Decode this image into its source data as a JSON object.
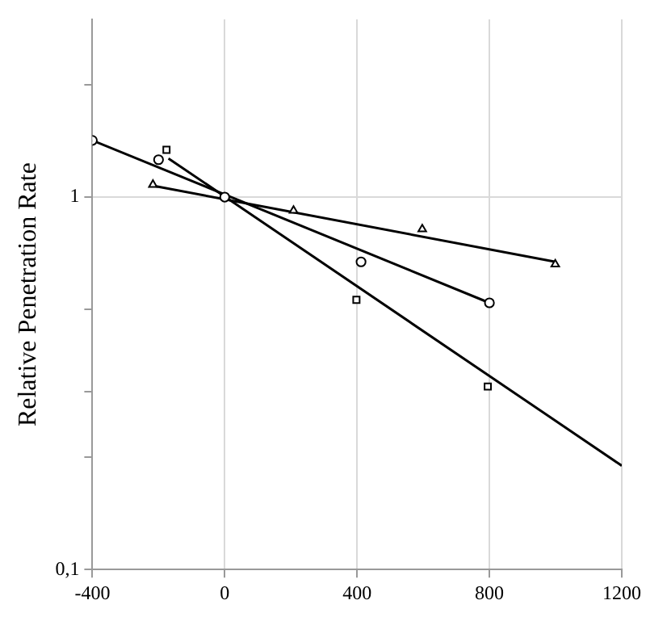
{
  "chart_data": {
    "type": "scatter",
    "ylabel": "Relative Penetration Rate",
    "log": "y",
    "grid": true,
    "legend": false,
    "xlim": [
      -400,
      1200
    ],
    "xticks": [
      -400,
      0,
      400,
      800,
      1200
    ],
    "ylim": [
      0.1,
      3
    ],
    "yticks": [
      {
        "value": 0.1,
        "label": "0,1"
      },
      {
        "value": 0.2,
        "label": null
      },
      {
        "value": 0.3,
        "label": null
      },
      {
        "value": 0.5,
        "label": null
      },
      {
        "value": 1,
        "label": "1"
      },
      {
        "value": 2,
        "label": null
      }
    ],
    "series": [
      {
        "type": "scatter",
        "marker": "circle",
        "color": "#000000",
        "x": [
          -400,
          -200,
          0,
          412,
          800
        ],
        "values": [
          1.42,
          1.26,
          1,
          0.67,
          0.52
        ]
      },
      {
        "type": "scatter",
        "marker": "square",
        "color": "#000000",
        "x": [
          -176,
          398,
          795
        ],
        "values": [
          1.34,
          0.53,
          0.31
        ]
      },
      {
        "type": "scatter",
        "marker": "triangle",
        "color": "#000000",
        "x": [
          -217,
          208,
          597,
          999
        ],
        "values": [
          1.08,
          0.92,
          0.82,
          0.66
        ]
      },
      {
        "type": "line",
        "marker": "none",
        "color": "#000000",
        "x": [
          -400,
          800
        ],
        "values": [
          1.42,
          0.52
        ]
      },
      {
        "type": "line",
        "marker": "none",
        "color": "#000000",
        "x": [
          -170,
          1200
        ],
        "values": [
          1.27,
          0.19
        ]
      },
      {
        "type": "line",
        "marker": "none",
        "color": "#000000",
        "x": [
          -210,
          1000
        ],
        "values": [
          1.07,
          0.67
        ]
      }
    ]
  }
}
